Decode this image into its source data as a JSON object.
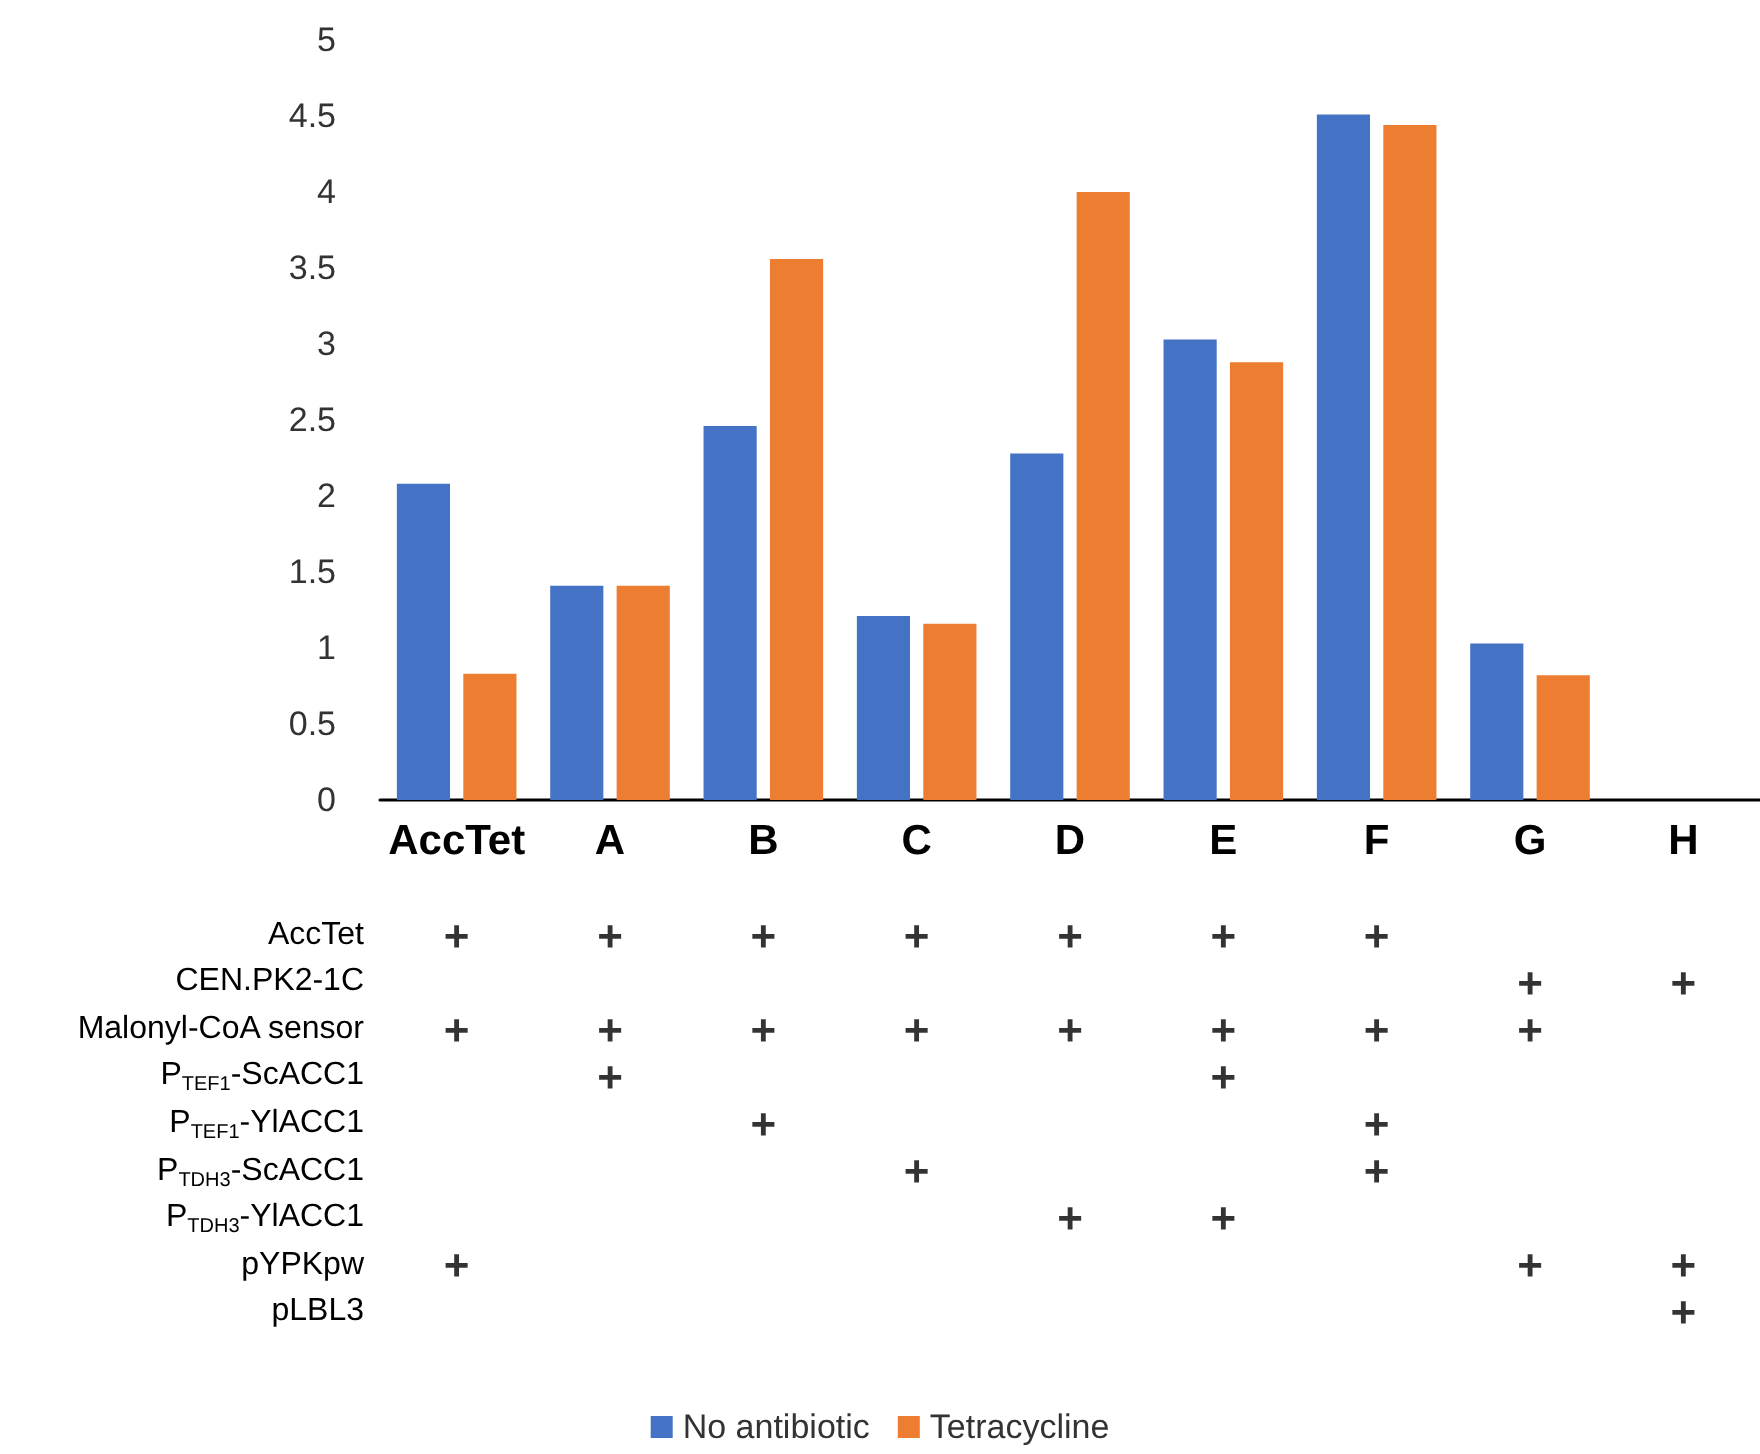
{
  "chart_data": [
    {
      "type": "bar",
      "categories": [
        "AccTet",
        "A",
        "B",
        "C",
        "D",
        "E",
        "F",
        "G",
        "H"
      ],
      "series": [
        {
          "name": "No antibiotic",
          "color": "#4472c4",
          "values": [
            2.08,
            1.41,
            2.46,
            1.21,
            2.28,
            3.03,
            4.51,
            1.03,
            null
          ]
        },
        {
          "name": "Tetracycline",
          "color": "#ed7d31",
          "values": [
            0.83,
            1.41,
            3.56,
            1.16,
            4.0,
            2.88,
            4.44,
            0.82,
            null
          ]
        }
      ],
      "ylim": [
        0,
        5
      ],
      "yticks": [
        0,
        0.5,
        1,
        1.5,
        2,
        2.5,
        3,
        3.5,
        4,
        4.5,
        5
      ],
      "grid": false,
      "legend": "bottom"
    },
    {
      "type": "heatmap",
      "categories": [
        null,
        null,
        null,
        null,
        null,
        null,
        null,
        null,
        null
      ],
      "y_categories": [
        "AccTet",
        "CEN.PK2-1C",
        "Malonyl-CoA sensor",
        "P$_{TEF1}$-ScACC1",
        "P$_{TEF1}$-YlACC1",
        "P$_{TDH3}$-ScACC1",
        "P$_{TDH3}$-YlACC1",
        "pYPKpw",
        "pLBL3"
      ],
      "cells": [
        [
          null,
          null,
          null,
          null,
          null,
          null,
          null,
          null,
          null
        ],
        [
          null,
          null,
          null,
          null,
          null,
          null,
          null,
          null,
          null
        ],
        [
          null,
          null,
          null,
          null,
          null,
          null,
          null,
          null,
          null
        ],
        [
          null,
          null,
          null,
          null,
          null,
          null,
          null,
          null,
          null
        ],
        [
          null,
          null,
          null,
          null,
          null,
          null,
          null,
          null,
          null
        ],
        [
          null,
          null,
          null,
          null,
          null,
          null,
          null,
          null,
          null
        ],
        [
          null,
          null,
          null,
          null,
          null,
          null,
          null,
          null,
          null
        ],
        [
          null,
          null,
          null,
          null,
          null,
          null,
          null,
          null,
          null
        ],
        [
          null,
          null,
          null,
          null,
          null,
          null,
          null,
          null,
          null
        ]
      ],
      "cell_labels": [
        [
          "+",
          "+",
          "+",
          "+",
          "+",
          "+",
          "+",
          null,
          null
        ],
        [
          null,
          null,
          null,
          null,
          null,
          null,
          null,
          "+",
          "+"
        ],
        [
          "+",
          "+",
          "+",
          "+",
          "+",
          "+",
          "+",
          "+",
          null
        ],
        [
          null,
          "+",
          null,
          null,
          null,
          "+",
          null,
          null,
          null
        ],
        [
          null,
          null,
          "+",
          null,
          null,
          null,
          "+",
          null,
          null
        ],
        [
          null,
          null,
          null,
          "+",
          null,
          null,
          "+",
          null,
          null
        ],
        [
          null,
          null,
          null,
          null,
          "+",
          "+",
          null,
          null,
          null
        ],
        [
          "+",
          null,
          null,
          null,
          null,
          null,
          null,
          "+",
          "+"
        ],
        [
          null,
          null,
          null,
          null,
          null,
          null,
          null,
          null,
          "+"
        ]
      ],
      "tick_labels": "y"
    }
  ]
}
